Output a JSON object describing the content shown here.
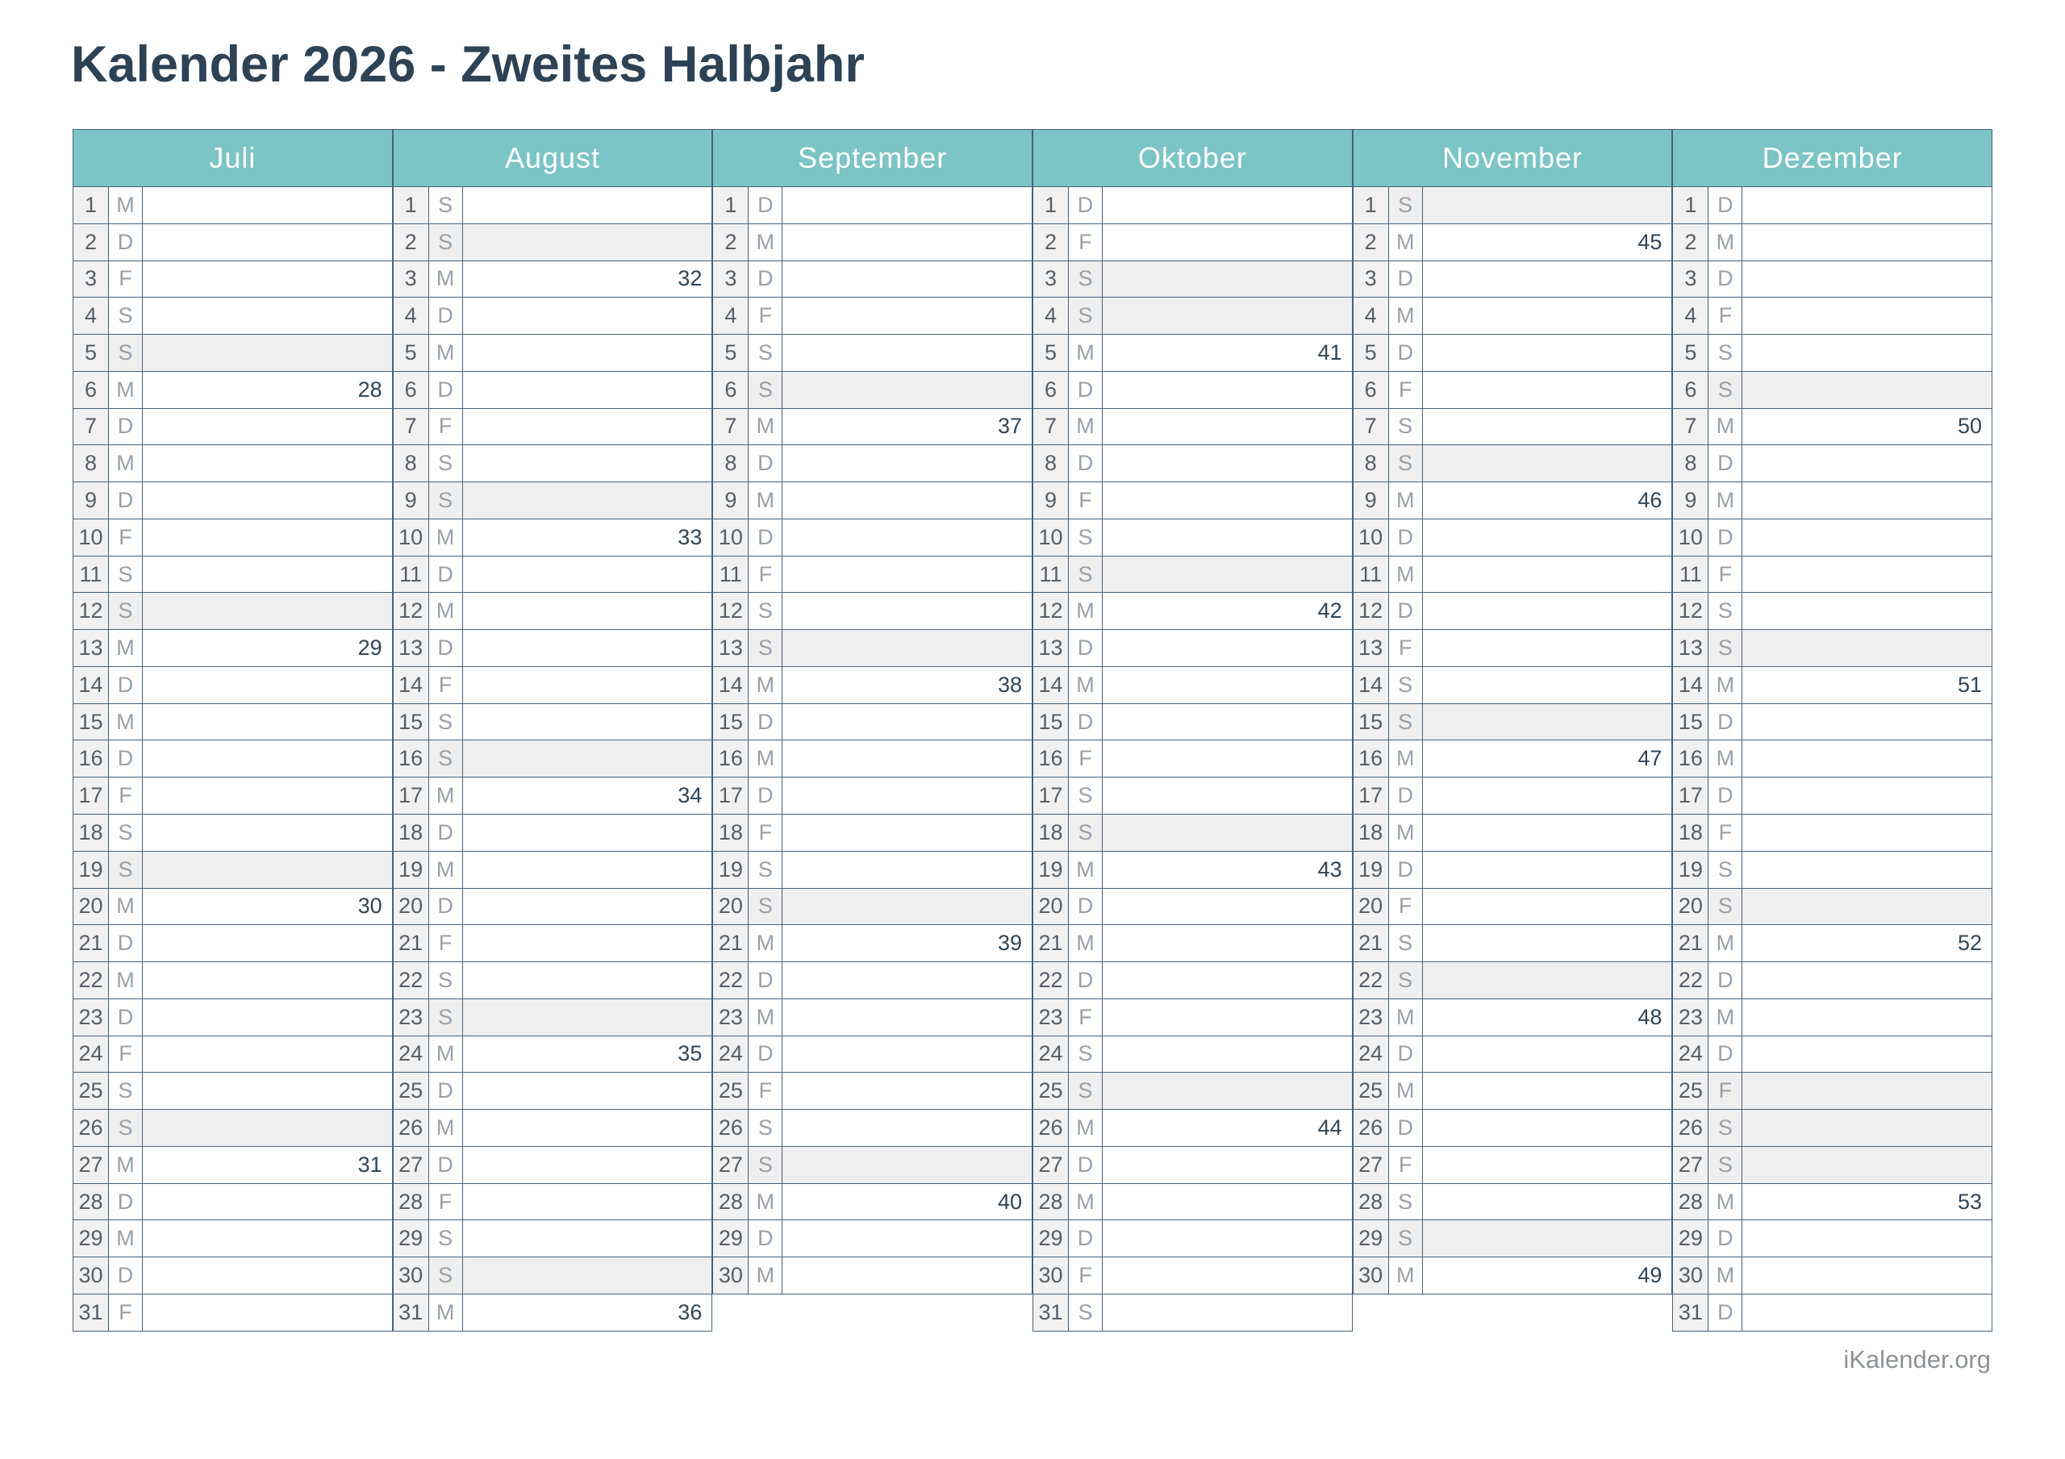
{
  "title": "Kalender 2026 - Zweites Halbjahr",
  "footer": "iKalender.org",
  "colors": {
    "header_bg": "#7cc4c6",
    "header_text": "#ffffff",
    "border": "#46627b",
    "weekend_bg": "#efefef",
    "daynum_bg": "#f1f1f1",
    "title": "#2d4254",
    "day_number": "#565e66",
    "weekday_letter": "#9aa0a6",
    "week_number": "#2f4559",
    "footer": "#8d9296"
  },
  "legend": {
    "weekday_letters": "M=Montag, D=Dienstag, M=Mittwoch, D=Donnerstag, F=Freitag, S=Samstag, S=Sonntag",
    "day_format": "[day, weekday_letter, iso_week_number_or_null, shaded_weekend_or_holiday_0_1]"
  },
  "months": [
    {
      "name": "Juli",
      "days": [
        [
          1,
          "M",
          null,
          0
        ],
        [
          2,
          "D",
          null,
          0
        ],
        [
          3,
          "F",
          null,
          0
        ],
        [
          4,
          "S",
          null,
          0
        ],
        [
          5,
          "S",
          null,
          1
        ],
        [
          6,
          "M",
          28,
          0
        ],
        [
          7,
          "D",
          null,
          0
        ],
        [
          8,
          "M",
          null,
          0
        ],
        [
          9,
          "D",
          null,
          0
        ],
        [
          10,
          "F",
          null,
          0
        ],
        [
          11,
          "S",
          null,
          0
        ],
        [
          12,
          "S",
          null,
          1
        ],
        [
          13,
          "M",
          29,
          0
        ],
        [
          14,
          "D",
          null,
          0
        ],
        [
          15,
          "M",
          null,
          0
        ],
        [
          16,
          "D",
          null,
          0
        ],
        [
          17,
          "F",
          null,
          0
        ],
        [
          18,
          "S",
          null,
          0
        ],
        [
          19,
          "S",
          null,
          1
        ],
        [
          20,
          "M",
          30,
          0
        ],
        [
          21,
          "D",
          null,
          0
        ],
        [
          22,
          "M",
          null,
          0
        ],
        [
          23,
          "D",
          null,
          0
        ],
        [
          24,
          "F",
          null,
          0
        ],
        [
          25,
          "S",
          null,
          0
        ],
        [
          26,
          "S",
          null,
          1
        ],
        [
          27,
          "M",
          31,
          0
        ],
        [
          28,
          "D",
          null,
          0
        ],
        [
          29,
          "M",
          null,
          0
        ],
        [
          30,
          "D",
          null,
          0
        ],
        [
          31,
          "F",
          null,
          0
        ]
      ]
    },
    {
      "name": "August",
      "days": [
        [
          1,
          "S",
          null,
          0
        ],
        [
          2,
          "S",
          null,
          1
        ],
        [
          3,
          "M",
          32,
          0
        ],
        [
          4,
          "D",
          null,
          0
        ],
        [
          5,
          "M",
          null,
          0
        ],
        [
          6,
          "D",
          null,
          0
        ],
        [
          7,
          "F",
          null,
          0
        ],
        [
          8,
          "S",
          null,
          0
        ],
        [
          9,
          "S",
          null,
          1
        ],
        [
          10,
          "M",
          33,
          0
        ],
        [
          11,
          "D",
          null,
          0
        ],
        [
          12,
          "M",
          null,
          0
        ],
        [
          13,
          "D",
          null,
          0
        ],
        [
          14,
          "F",
          null,
          0
        ],
        [
          15,
          "S",
          null,
          0
        ],
        [
          16,
          "S",
          null,
          1
        ],
        [
          17,
          "M",
          34,
          0
        ],
        [
          18,
          "D",
          null,
          0
        ],
        [
          19,
          "M",
          null,
          0
        ],
        [
          20,
          "D",
          null,
          0
        ],
        [
          21,
          "F",
          null,
          0
        ],
        [
          22,
          "S",
          null,
          0
        ],
        [
          23,
          "S",
          null,
          1
        ],
        [
          24,
          "M",
          35,
          0
        ],
        [
          25,
          "D",
          null,
          0
        ],
        [
          26,
          "M",
          null,
          0
        ],
        [
          27,
          "D",
          null,
          0
        ],
        [
          28,
          "F",
          null,
          0
        ],
        [
          29,
          "S",
          null,
          0
        ],
        [
          30,
          "S",
          null,
          1
        ],
        [
          31,
          "M",
          36,
          0
        ]
      ]
    },
    {
      "name": "September",
      "days": [
        [
          1,
          "D",
          null,
          0
        ],
        [
          2,
          "M",
          null,
          0
        ],
        [
          3,
          "D",
          null,
          0
        ],
        [
          4,
          "F",
          null,
          0
        ],
        [
          5,
          "S",
          null,
          0
        ],
        [
          6,
          "S",
          null,
          1
        ],
        [
          7,
          "M",
          37,
          0
        ],
        [
          8,
          "D",
          null,
          0
        ],
        [
          9,
          "M",
          null,
          0
        ],
        [
          10,
          "D",
          null,
          0
        ],
        [
          11,
          "F",
          null,
          0
        ],
        [
          12,
          "S",
          null,
          0
        ],
        [
          13,
          "S",
          null,
          1
        ],
        [
          14,
          "M",
          38,
          0
        ],
        [
          15,
          "D",
          null,
          0
        ],
        [
          16,
          "M",
          null,
          0
        ],
        [
          17,
          "D",
          null,
          0
        ],
        [
          18,
          "F",
          null,
          0
        ],
        [
          19,
          "S",
          null,
          0
        ],
        [
          20,
          "S",
          null,
          1
        ],
        [
          21,
          "M",
          39,
          0
        ],
        [
          22,
          "D",
          null,
          0
        ],
        [
          23,
          "M",
          null,
          0
        ],
        [
          24,
          "D",
          null,
          0
        ],
        [
          25,
          "F",
          null,
          0
        ],
        [
          26,
          "S",
          null,
          0
        ],
        [
          27,
          "S",
          null,
          1
        ],
        [
          28,
          "M",
          40,
          0
        ],
        [
          29,
          "D",
          null,
          0
        ],
        [
          30,
          "M",
          null,
          0
        ]
      ]
    },
    {
      "name": "Oktober",
      "days": [
        [
          1,
          "D",
          null,
          0
        ],
        [
          2,
          "F",
          null,
          0
        ],
        [
          3,
          "S",
          null,
          1
        ],
        [
          4,
          "S",
          null,
          1
        ],
        [
          5,
          "M",
          41,
          0
        ],
        [
          6,
          "D",
          null,
          0
        ],
        [
          7,
          "M",
          null,
          0
        ],
        [
          8,
          "D",
          null,
          0
        ],
        [
          9,
          "F",
          null,
          0
        ],
        [
          10,
          "S",
          null,
          0
        ],
        [
          11,
          "S",
          null,
          1
        ],
        [
          12,
          "M",
          42,
          0
        ],
        [
          13,
          "D",
          null,
          0
        ],
        [
          14,
          "M",
          null,
          0
        ],
        [
          15,
          "D",
          null,
          0
        ],
        [
          16,
          "F",
          null,
          0
        ],
        [
          17,
          "S",
          null,
          0
        ],
        [
          18,
          "S",
          null,
          1
        ],
        [
          19,
          "M",
          43,
          0
        ],
        [
          20,
          "D",
          null,
          0
        ],
        [
          21,
          "M",
          null,
          0
        ],
        [
          22,
          "D",
          null,
          0
        ],
        [
          23,
          "F",
          null,
          0
        ],
        [
          24,
          "S",
          null,
          0
        ],
        [
          25,
          "S",
          null,
          1
        ],
        [
          26,
          "M",
          44,
          0
        ],
        [
          27,
          "D",
          null,
          0
        ],
        [
          28,
          "M",
          null,
          0
        ],
        [
          29,
          "D",
          null,
          0
        ],
        [
          30,
          "F",
          null,
          0
        ],
        [
          31,
          "S",
          null,
          0
        ]
      ]
    },
    {
      "name": "November",
      "days": [
        [
          1,
          "S",
          null,
          1
        ],
        [
          2,
          "M",
          45,
          0
        ],
        [
          3,
          "D",
          null,
          0
        ],
        [
          4,
          "M",
          null,
          0
        ],
        [
          5,
          "D",
          null,
          0
        ],
        [
          6,
          "F",
          null,
          0
        ],
        [
          7,
          "S",
          null,
          0
        ],
        [
          8,
          "S",
          null,
          1
        ],
        [
          9,
          "M",
          46,
          0
        ],
        [
          10,
          "D",
          null,
          0
        ],
        [
          11,
          "M",
          null,
          0
        ],
        [
          12,
          "D",
          null,
          0
        ],
        [
          13,
          "F",
          null,
          0
        ],
        [
          14,
          "S",
          null,
          0
        ],
        [
          15,
          "S",
          null,
          1
        ],
        [
          16,
          "M",
          47,
          0
        ],
        [
          17,
          "D",
          null,
          0
        ],
        [
          18,
          "M",
          null,
          0
        ],
        [
          19,
          "D",
          null,
          0
        ],
        [
          20,
          "F",
          null,
          0
        ],
        [
          21,
          "S",
          null,
          0
        ],
        [
          22,
          "S",
          null,
          1
        ],
        [
          23,
          "M",
          48,
          0
        ],
        [
          24,
          "D",
          null,
          0
        ],
        [
          25,
          "M",
          null,
          0
        ],
        [
          26,
          "D",
          null,
          0
        ],
        [
          27,
          "F",
          null,
          0
        ],
        [
          28,
          "S",
          null,
          0
        ],
        [
          29,
          "S",
          null,
          1
        ],
        [
          30,
          "M",
          49,
          0
        ]
      ]
    },
    {
      "name": "Dezember",
      "days": [
        [
          1,
          "D",
          null,
          0
        ],
        [
          2,
          "M",
          null,
          0
        ],
        [
          3,
          "D",
          null,
          0
        ],
        [
          4,
          "F",
          null,
          0
        ],
        [
          5,
          "S",
          null,
          0
        ],
        [
          6,
          "S",
          null,
          1
        ],
        [
          7,
          "M",
          50,
          0
        ],
        [
          8,
          "D",
          null,
          0
        ],
        [
          9,
          "M",
          null,
          0
        ],
        [
          10,
          "D",
          null,
          0
        ],
        [
          11,
          "F",
          null,
          0
        ],
        [
          12,
          "S",
          null,
          0
        ],
        [
          13,
          "S",
          null,
          1
        ],
        [
          14,
          "M",
          51,
          0
        ],
        [
          15,
          "D",
          null,
          0
        ],
        [
          16,
          "M",
          null,
          0
        ],
        [
          17,
          "D",
          null,
          0
        ],
        [
          18,
          "F",
          null,
          0
        ],
        [
          19,
          "S",
          null,
          0
        ],
        [
          20,
          "S",
          null,
          1
        ],
        [
          21,
          "M",
          52,
          0
        ],
        [
          22,
          "D",
          null,
          0
        ],
        [
          23,
          "M",
          null,
          0
        ],
        [
          24,
          "D",
          null,
          0
        ],
        [
          25,
          "F",
          null,
          1
        ],
        [
          26,
          "S",
          null,
          1
        ],
        [
          27,
          "S",
          null,
          1
        ],
        [
          28,
          "M",
          53,
          0
        ],
        [
          29,
          "D",
          null,
          0
        ],
        [
          30,
          "M",
          null,
          0
        ],
        [
          31,
          "D",
          null,
          0
        ]
      ]
    }
  ]
}
